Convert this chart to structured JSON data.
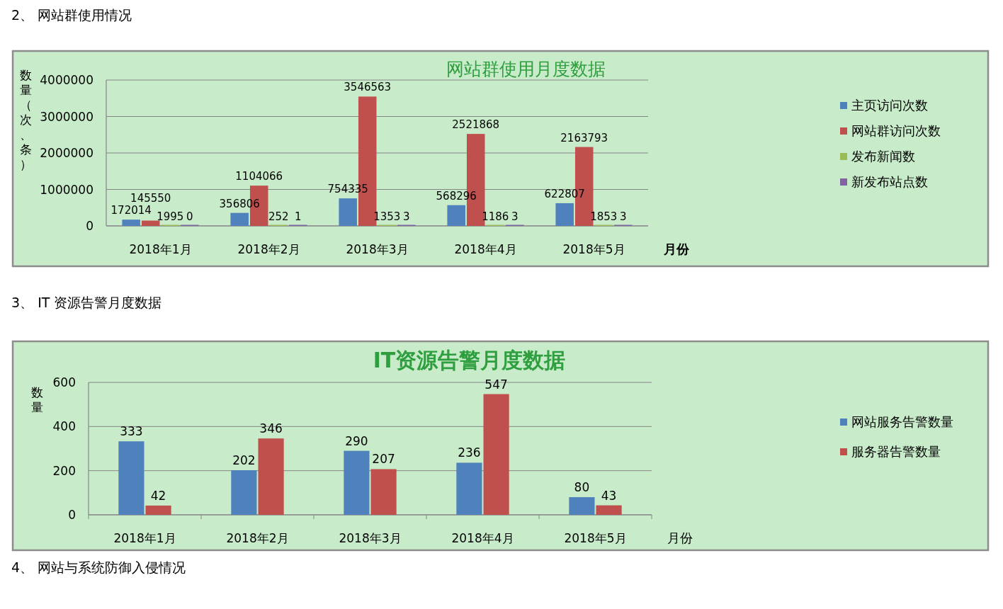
{
  "chart_data": [
    {
      "type": "bar",
      "title": "网站群使用月度数据",
      "ylabel": "数量（次、条）",
      "xlabel": "月份",
      "categories": [
        "2018年1月",
        "2018年2月",
        "2018年3月",
        "2018年4月",
        "2018年5月"
      ],
      "series": [
        {
          "name": "主页访问次数",
          "color": "#4f81bd",
          "values": [
            172014,
            356806,
            754335,
            568296,
            622807
          ]
        },
        {
          "name": "网站群访问次数",
          "color": "#c0504d",
          "values": [
            145550,
            1104066,
            3546563,
            2521868,
            2163793
          ]
        },
        {
          "name": "发布新闻数",
          "color": "#9bbb59",
          "values": [
            1995,
            252,
            1353,
            1186,
            1853
          ]
        },
        {
          "name": "新发布站点数",
          "color": "#8064a2",
          "values": [
            0,
            1,
            3,
            3,
            3
          ]
        }
      ],
      "ylim": [
        0,
        4000000
      ],
      "yticks": [
        0,
        1000000,
        2000000,
        3000000,
        4000000
      ],
      "grid": "y",
      "legend": "right",
      "data_labels": true,
      "annotations": [
        "2、 网站群使用情况"
      ]
    },
    {
      "type": "bar",
      "title": "IT资源告警月度数据",
      "ylabel": "数量",
      "xlabel": "月份",
      "categories": [
        "2018年1月",
        "2018年2月",
        "2018年3月",
        "2018年4月",
        "2018年5月"
      ],
      "series": [
        {
          "name": "网站服务告警数量",
          "color": "#4f81bd",
          "values": [
            333,
            202,
            290,
            236,
            80
          ]
        },
        {
          "name": "服务器告警数量",
          "color": "#c0504d",
          "values": [
            42,
            346,
            207,
            547,
            43
          ]
        }
      ],
      "ylim": [
        0,
        600
      ],
      "yticks": [
        0,
        200,
        400,
        600
      ],
      "grid": "y",
      "legend": "right",
      "data_labels": true,
      "annotations": [
        "3、 IT 资源告警月度数据",
        "4、 网站与系统防御入侵情况"
      ]
    }
  ]
}
